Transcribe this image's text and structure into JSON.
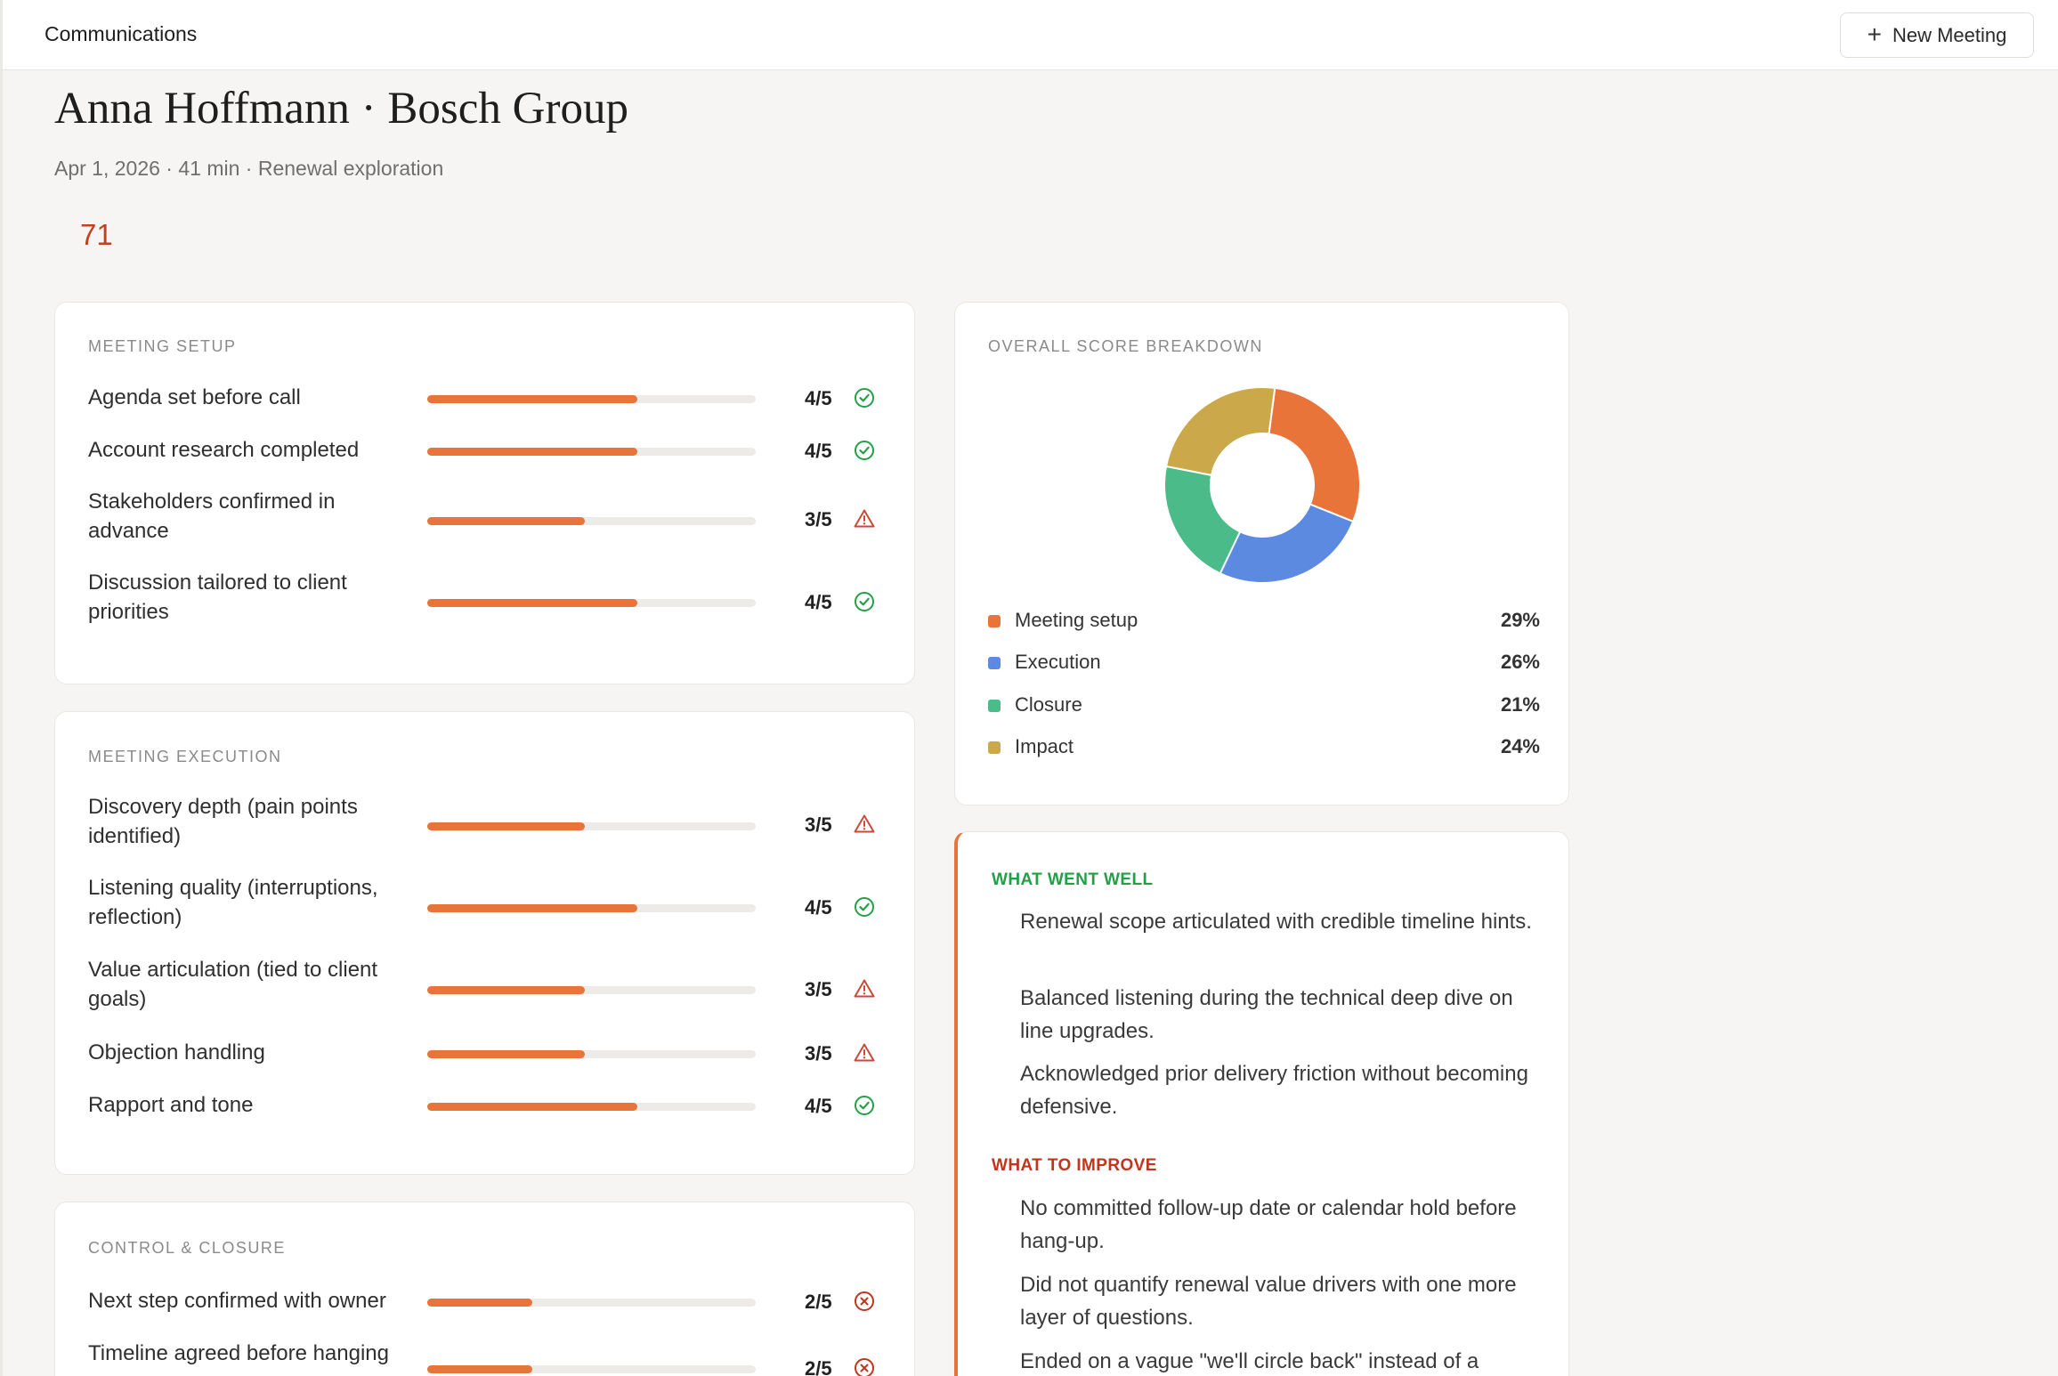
{
  "app": {
    "section_title": "Communications",
    "new_meeting_label": "New Meeting"
  },
  "header": {
    "title": "Anna Hoffmann · Bosch Group",
    "meta": "Apr 1, 2026 · 41 min · Renewal exploration",
    "overall_score": "71"
  },
  "setup": {
    "title": "MEETING SETUP",
    "items": [
      {
        "label": "Agenda set before call",
        "value": "4/5",
        "score": 4,
        "status": "check-circle-icon"
      },
      {
        "label": "Account research completed",
        "value": "4/5",
        "score": 4,
        "status": "check-circle-icon"
      },
      {
        "label": "Stakeholders confirmed in advance",
        "value": "3/5",
        "score": 3,
        "status": "warning-triangle-icon"
      },
      {
        "label": "Discussion tailored to client priorities",
        "value": "4/5",
        "score": 4,
        "status": "check-circle-icon"
      }
    ]
  },
  "execution": {
    "title": "MEETING EXECUTION",
    "items": [
      {
        "label": "Discovery depth (pain points identified)",
        "value": "3/5",
        "score": 3,
        "status": "warning-triangle-icon"
      },
      {
        "label": "Listening quality (interruptions, reflection)",
        "value": "4/5",
        "score": 4,
        "status": "check-circle-icon"
      },
      {
        "label": "Value articulation (tied to client goals)",
        "value": "3/5",
        "score": 3,
        "status": "warning-triangle-icon"
      },
      {
        "label": "Objection handling",
        "value": "3/5",
        "score": 3,
        "status": "warning-triangle-icon"
      },
      {
        "label": "Rapport and tone",
        "value": "4/5",
        "score": 4,
        "status": "check-circle-icon"
      }
    ]
  },
  "closure": {
    "title": "CONTROL & CLOSURE",
    "items": [
      {
        "label": "Next step confirmed with owner",
        "value": "2/5",
        "score": 2,
        "status": "x-circle-icon"
      },
      {
        "label": "Timeline agreed before hanging",
        "value": "2/5",
        "score": 2,
        "status": "x-circle-icon"
      }
    ]
  },
  "breakdown": {
    "title": "OVERALL SCORE BREAKDOWN",
    "items": [
      {
        "name": "Meeting setup",
        "percent": "29%"
      },
      {
        "name": "Execution",
        "percent": "26%"
      },
      {
        "name": "Closure",
        "percent": "21%"
      },
      {
        "name": "Impact",
        "percent": "24%"
      }
    ]
  },
  "chart_data": {
    "type": "pie",
    "categories": [
      "Meeting setup",
      "Execution",
      "Closure",
      "Impact"
    ],
    "values": [
      29,
      26,
      21,
      24
    ],
    "colors": [
      "#e8743a",
      "#5b8ae0",
      "#4cbb8a",
      "#cba84a"
    ],
    "title": "OVERALL SCORE BREAKDOWN"
  },
  "feedback": {
    "well_title": "WHAT WENT WELL",
    "well_items": [
      "Renewal scope articulated with credible timeline hints.",
      "Balanced listening during the technical deep dive on line upgrades.",
      "Acknowledged prior delivery friction without becoming defensive."
    ],
    "improve_title": "WHAT TO IMPROVE",
    "improve_items": [
      "No committed follow-up date or calendar hold before hang-up.",
      "Did not quantify renewal value drivers with one more layer of questions.",
      "Ended on a vague \"we'll circle back\" instead of a"
    ]
  },
  "colors": {
    "accent": "#e8743a",
    "score_red": "#c2401e",
    "good_green": "#23a047",
    "improve_red": "#c2341c",
    "warn_red": "#c94a3a"
  }
}
